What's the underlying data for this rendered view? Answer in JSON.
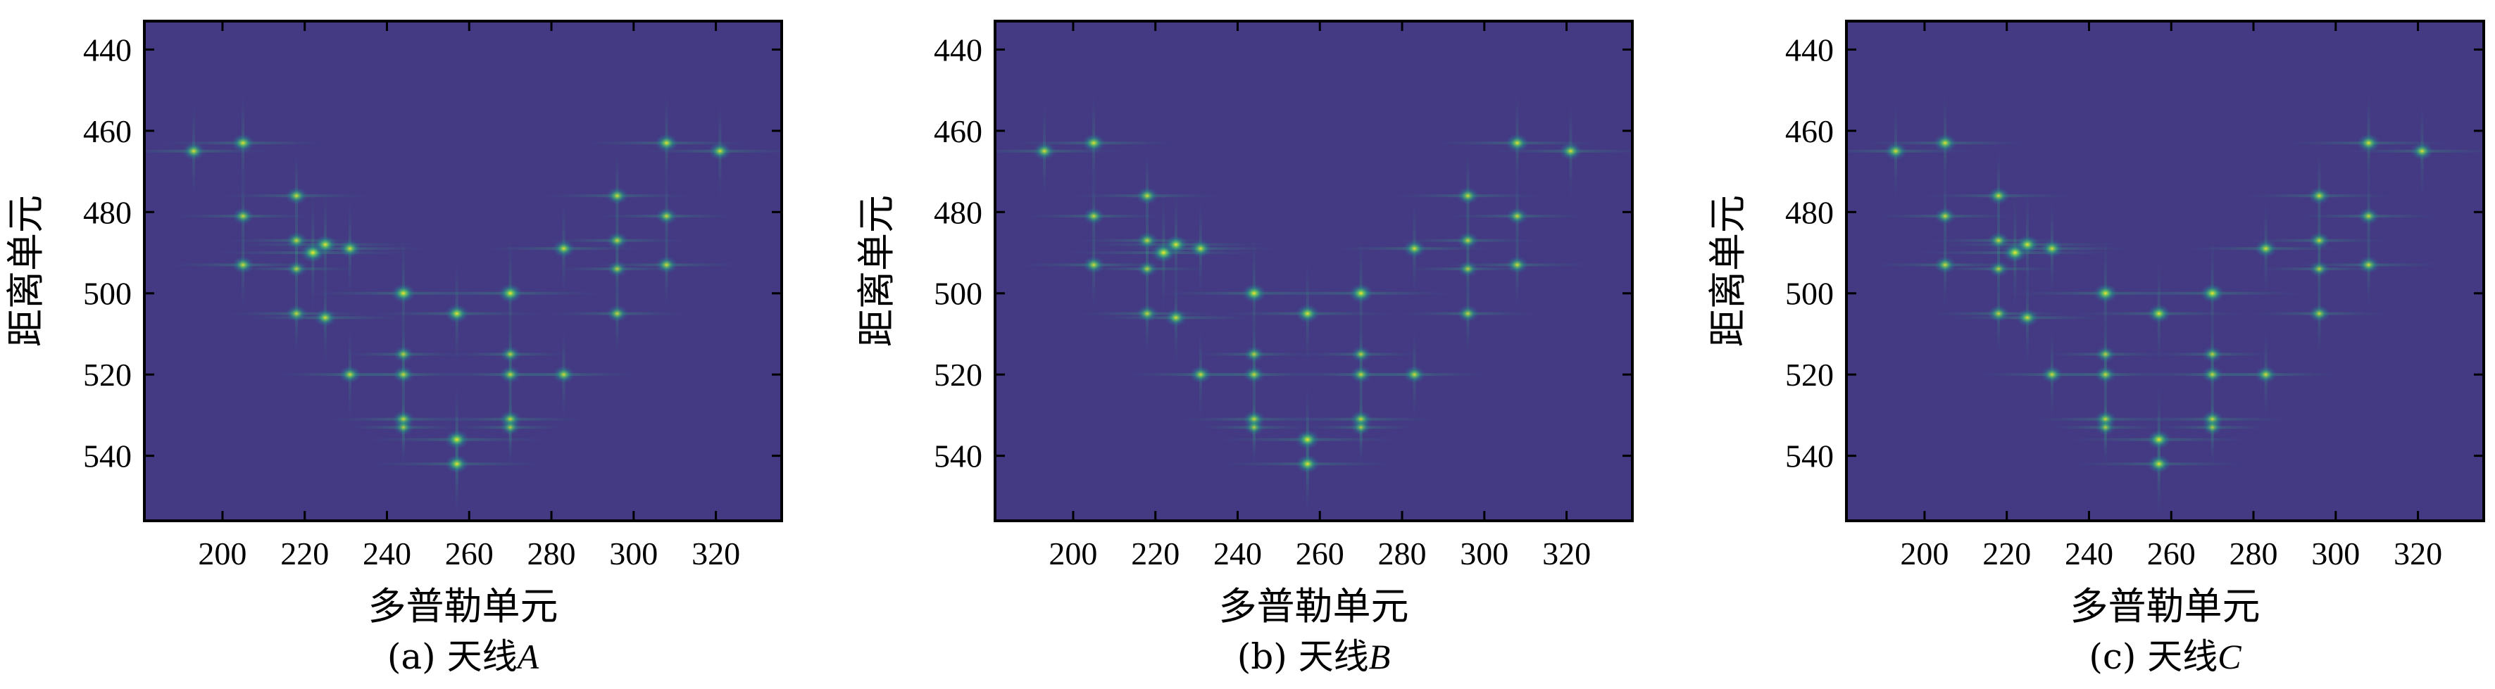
{
  "chart_data": [
    {
      "type": "heatmap",
      "caption_prefix": "(a) 天线",
      "caption_antenna": "A",
      "xlabel": "多普勒单元",
      "ylabel": "距离单元",
      "xlim": [
        181,
        336
      ],
      "ylim": [
        556,
        433
      ],
      "xticks": [
        200,
        220,
        240,
        260,
        280,
        300,
        320
      ],
      "yticks": [
        440,
        460,
        480,
        500,
        520,
        540
      ],
      "background_color": "#443983",
      "colormap": "viridis",
      "y_axis_inverted": true
    },
    {
      "type": "heatmap",
      "caption_prefix": "(b) 天线",
      "caption_antenna": "B",
      "xlabel": "多普勒单元",
      "ylabel": "距离单元",
      "xlim": [
        181,
        336
      ],
      "ylim": [
        556,
        433
      ],
      "xticks": [
        200,
        220,
        240,
        260,
        280,
        300,
        320
      ],
      "yticks": [
        440,
        460,
        480,
        500,
        520,
        540
      ],
      "background_color": "#443983",
      "colormap": "viridis",
      "y_axis_inverted": true
    },
    {
      "type": "heatmap",
      "caption_prefix": "(c) 天线",
      "caption_antenna": "C",
      "xlabel": "多普勒单元",
      "ylabel": "距离单元",
      "xlim": [
        181,
        336
      ],
      "ylim": [
        556,
        433
      ],
      "xticks": [
        200,
        220,
        240,
        260,
        280,
        300,
        320
      ],
      "yticks": [
        440,
        460,
        480,
        500,
        520,
        540
      ],
      "background_color": "#443983",
      "colormap": "viridis",
      "y_axis_inverted": true
    }
  ],
  "scatterers": [
    {
      "x": 193,
      "y": 465,
      "i": 0.8
    },
    {
      "x": 205,
      "y": 463,
      "i": 0.85
    },
    {
      "x": 308,
      "y": 463,
      "i": 0.85
    },
    {
      "x": 321,
      "y": 465,
      "i": 0.8
    },
    {
      "x": 205,
      "y": 481,
      "i": 0.7
    },
    {
      "x": 218,
      "y": 476,
      "i": 0.75
    },
    {
      "x": 296,
      "y": 476,
      "i": 0.75
    },
    {
      "x": 308,
      "y": 481,
      "i": 0.7
    },
    {
      "x": 218,
      "y": 487,
      "i": 0.7
    },
    {
      "x": 222,
      "y": 490,
      "i": 1.0
    },
    {
      "x": 225,
      "y": 488,
      "i": 0.9
    },
    {
      "x": 231,
      "y": 489,
      "i": 0.8
    },
    {
      "x": 283,
      "y": 489,
      "i": 0.8
    },
    {
      "x": 296,
      "y": 487,
      "i": 0.7
    },
    {
      "x": 205,
      "y": 493,
      "i": 0.75
    },
    {
      "x": 218,
      "y": 494,
      "i": 0.6
    },
    {
      "x": 296,
      "y": 494,
      "i": 0.6
    },
    {
      "x": 308,
      "y": 493,
      "i": 0.75
    },
    {
      "x": 244,
      "y": 500,
      "i": 0.95
    },
    {
      "x": 270,
      "y": 500,
      "i": 0.95
    },
    {
      "x": 257,
      "y": 505,
      "i": 0.9
    },
    {
      "x": 218,
      "y": 505,
      "i": 0.7
    },
    {
      "x": 225,
      "y": 506,
      "i": 0.8
    },
    {
      "x": 296,
      "y": 505,
      "i": 0.7
    },
    {
      "x": 244,
      "y": 515,
      "i": 0.6
    },
    {
      "x": 270,
      "y": 515,
      "i": 0.6
    },
    {
      "x": 231,
      "y": 520,
      "i": 0.75
    },
    {
      "x": 244,
      "y": 520,
      "i": 0.7
    },
    {
      "x": 270,
      "y": 520,
      "i": 0.7
    },
    {
      "x": 283,
      "y": 520,
      "i": 0.75
    },
    {
      "x": 244,
      "y": 531,
      "i": 0.75
    },
    {
      "x": 270,
      "y": 531,
      "i": 0.75
    },
    {
      "x": 257,
      "y": 536,
      "i": 0.95
    },
    {
      "x": 244,
      "y": 533,
      "i": 0.55
    },
    {
      "x": 270,
      "y": 533,
      "i": 0.55
    },
    {
      "x": 257,
      "y": 542,
      "i": 0.9
    }
  ]
}
